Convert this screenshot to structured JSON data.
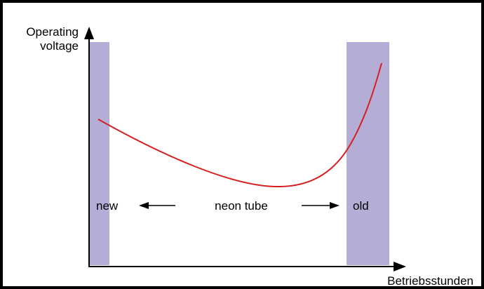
{
  "axes": {
    "y_label": [
      "Operating",
      "voltage"
    ],
    "x_label": "Betriebsstunden"
  },
  "regions": {
    "start": "new",
    "middle": "neon tube",
    "end": "old"
  }
}
